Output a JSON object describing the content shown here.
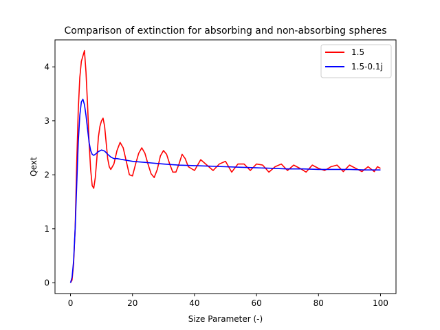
{
  "chart_data": {
    "type": "line",
    "title": "Comparison of extinction for absorbing and non-absorbing spheres",
    "xlabel": "Size Parameter (-)",
    "ylabel": "Qext",
    "xlim": [
      -5,
      105
    ],
    "ylim": [
      -0.2,
      4.5
    ],
    "xticks": [
      0,
      20,
      40,
      60,
      80,
      100
    ],
    "yticks": [
      0,
      1,
      2,
      3,
      4
    ],
    "grid": false,
    "legend_position": "top-right",
    "series": [
      {
        "name": "1.5",
        "color": "#ff0000",
        "x": [
          0,
          0.5,
          1,
          1.5,
          2,
          2.5,
          3,
          3.5,
          4,
          4.5,
          5,
          5.5,
          6,
          6.5,
          7,
          7.5,
          8,
          8.5,
          9,
          9.5,
          10,
          10.5,
          11,
          11.5,
          12,
          12.5,
          13,
          14,
          15,
          16,
          17,
          18,
          19,
          20,
          21,
          22,
          23,
          24,
          25,
          26,
          27,
          28,
          29,
          30,
          31,
          32,
          33,
          34,
          35,
          36,
          37,
          38,
          40,
          42,
          44,
          46,
          48,
          50,
          52,
          54,
          56,
          58,
          60,
          62,
          64,
          66,
          68,
          70,
          72,
          74,
          76,
          78,
          80,
          82,
          84,
          86,
          88,
          90,
          92,
          94,
          96,
          98,
          99,
          100
        ],
        "y": [
          0.0,
          0.05,
          0.35,
          1.0,
          2.2,
          3.2,
          3.8,
          4.1,
          4.2,
          4.3,
          3.9,
          3.3,
          2.6,
          2.1,
          1.8,
          1.75,
          1.95,
          2.3,
          2.7,
          2.9,
          3.0,
          3.05,
          2.9,
          2.6,
          2.3,
          2.15,
          2.1,
          2.2,
          2.45,
          2.6,
          2.5,
          2.25,
          2.0,
          1.98,
          2.2,
          2.4,
          2.5,
          2.4,
          2.2,
          2.02,
          1.95,
          2.1,
          2.35,
          2.45,
          2.38,
          2.2,
          2.05,
          2.05,
          2.2,
          2.38,
          2.3,
          2.15,
          2.08,
          2.28,
          2.18,
          2.08,
          2.2,
          2.25,
          2.05,
          2.2,
          2.2,
          2.08,
          2.2,
          2.18,
          2.05,
          2.15,
          2.2,
          2.08,
          2.18,
          2.12,
          2.05,
          2.18,
          2.12,
          2.08,
          2.15,
          2.18,
          2.06,
          2.18,
          2.12,
          2.06,
          2.15,
          2.06,
          2.15,
          2.12
        ]
      },
      {
        "name": "1.5-0.1j",
        "color": "#0000ff",
        "x": [
          0,
          0.5,
          1,
          1.5,
          2,
          2.5,
          3,
          3.5,
          4,
          4.5,
          5,
          5.5,
          6,
          6.5,
          7,
          7.5,
          8,
          9,
          10,
          11,
          12,
          13,
          14,
          15,
          16,
          17,
          18,
          19,
          20,
          22,
          24,
          26,
          28,
          30,
          35,
          40,
          45,
          50,
          55,
          60,
          65,
          70,
          75,
          80,
          85,
          90,
          95,
          100
        ],
        "y": [
          0.0,
          0.1,
          0.4,
          1.0,
          1.8,
          2.6,
          3.1,
          3.35,
          3.4,
          3.3,
          3.1,
          2.85,
          2.6,
          2.45,
          2.38,
          2.36,
          2.38,
          2.43,
          2.46,
          2.44,
          2.38,
          2.33,
          2.3,
          2.3,
          2.29,
          2.28,
          2.27,
          2.26,
          2.25,
          2.24,
          2.23,
          2.22,
          2.21,
          2.2,
          2.18,
          2.17,
          2.16,
          2.15,
          2.14,
          2.13,
          2.12,
          2.11,
          2.11,
          2.1,
          2.1,
          2.1,
          2.09,
          2.09
        ]
      }
    ]
  }
}
